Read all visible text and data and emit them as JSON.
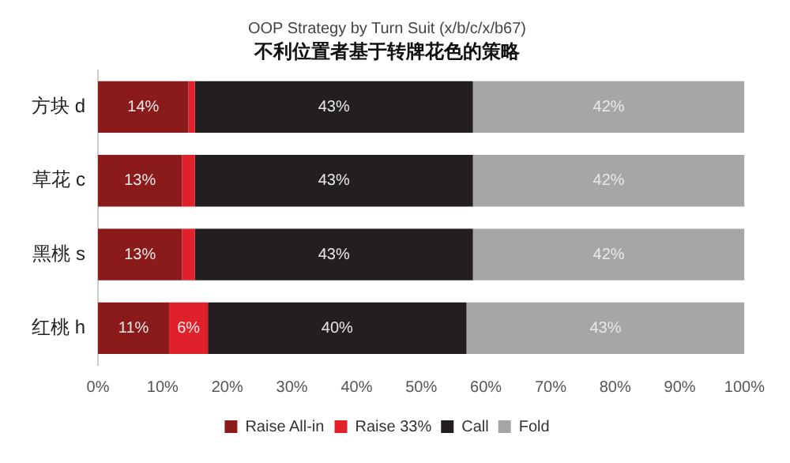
{
  "chart_data": {
    "type": "bar",
    "orientation": "horizontal",
    "stacked": true,
    "title": "OOP Strategy by Turn Suit (x/b/c/x/b67)",
    "subtitle": "不利位置者基于转牌花色的策略",
    "categories": [
      "方块 d",
      "草花 c",
      "黑桃 s",
      "红桃 h"
    ],
    "series": [
      {
        "name": "Raise All-in",
        "color": "#8b1a1a",
        "values": [
          14,
          13,
          13,
          11
        ],
        "value_labels": [
          "14%",
          "13%",
          "13%",
          "11%"
        ]
      },
      {
        "name": "Raise 33%",
        "color": "#e0202a",
        "values": [
          1,
          2,
          2,
          6
        ],
        "value_labels": [
          null,
          null,
          null,
          "6%"
        ]
      },
      {
        "name": "Call",
        "color": "#231f20",
        "values": [
          43,
          43,
          43,
          40
        ],
        "value_labels": [
          "43%",
          "43%",
          "43%",
          "40%"
        ]
      },
      {
        "name": "Fold",
        "color": "#a6a6a6",
        "values": [
          42,
          42,
          42,
          43
        ],
        "value_labels": [
          "42%",
          "42%",
          "42%",
          "43%"
        ]
      }
    ],
    "xlim": [
      0,
      100
    ],
    "xticks": [
      {
        "value": 0,
        "label": "0%"
      },
      {
        "value": 10,
        "label": "10%"
      },
      {
        "value": 20,
        "label": "20%"
      },
      {
        "value": 30,
        "label": "30%"
      },
      {
        "value": 40,
        "label": "40%"
      },
      {
        "value": 50,
        "label": "50%"
      },
      {
        "value": 60,
        "label": "60%"
      },
      {
        "value": 70,
        "label": "70%"
      },
      {
        "value": 80,
        "label": "80%"
      },
      {
        "value": 90,
        "label": "90%"
      },
      {
        "value": 100,
        "label": "100%"
      }
    ],
    "grid": false,
    "legend": "bottom"
  }
}
